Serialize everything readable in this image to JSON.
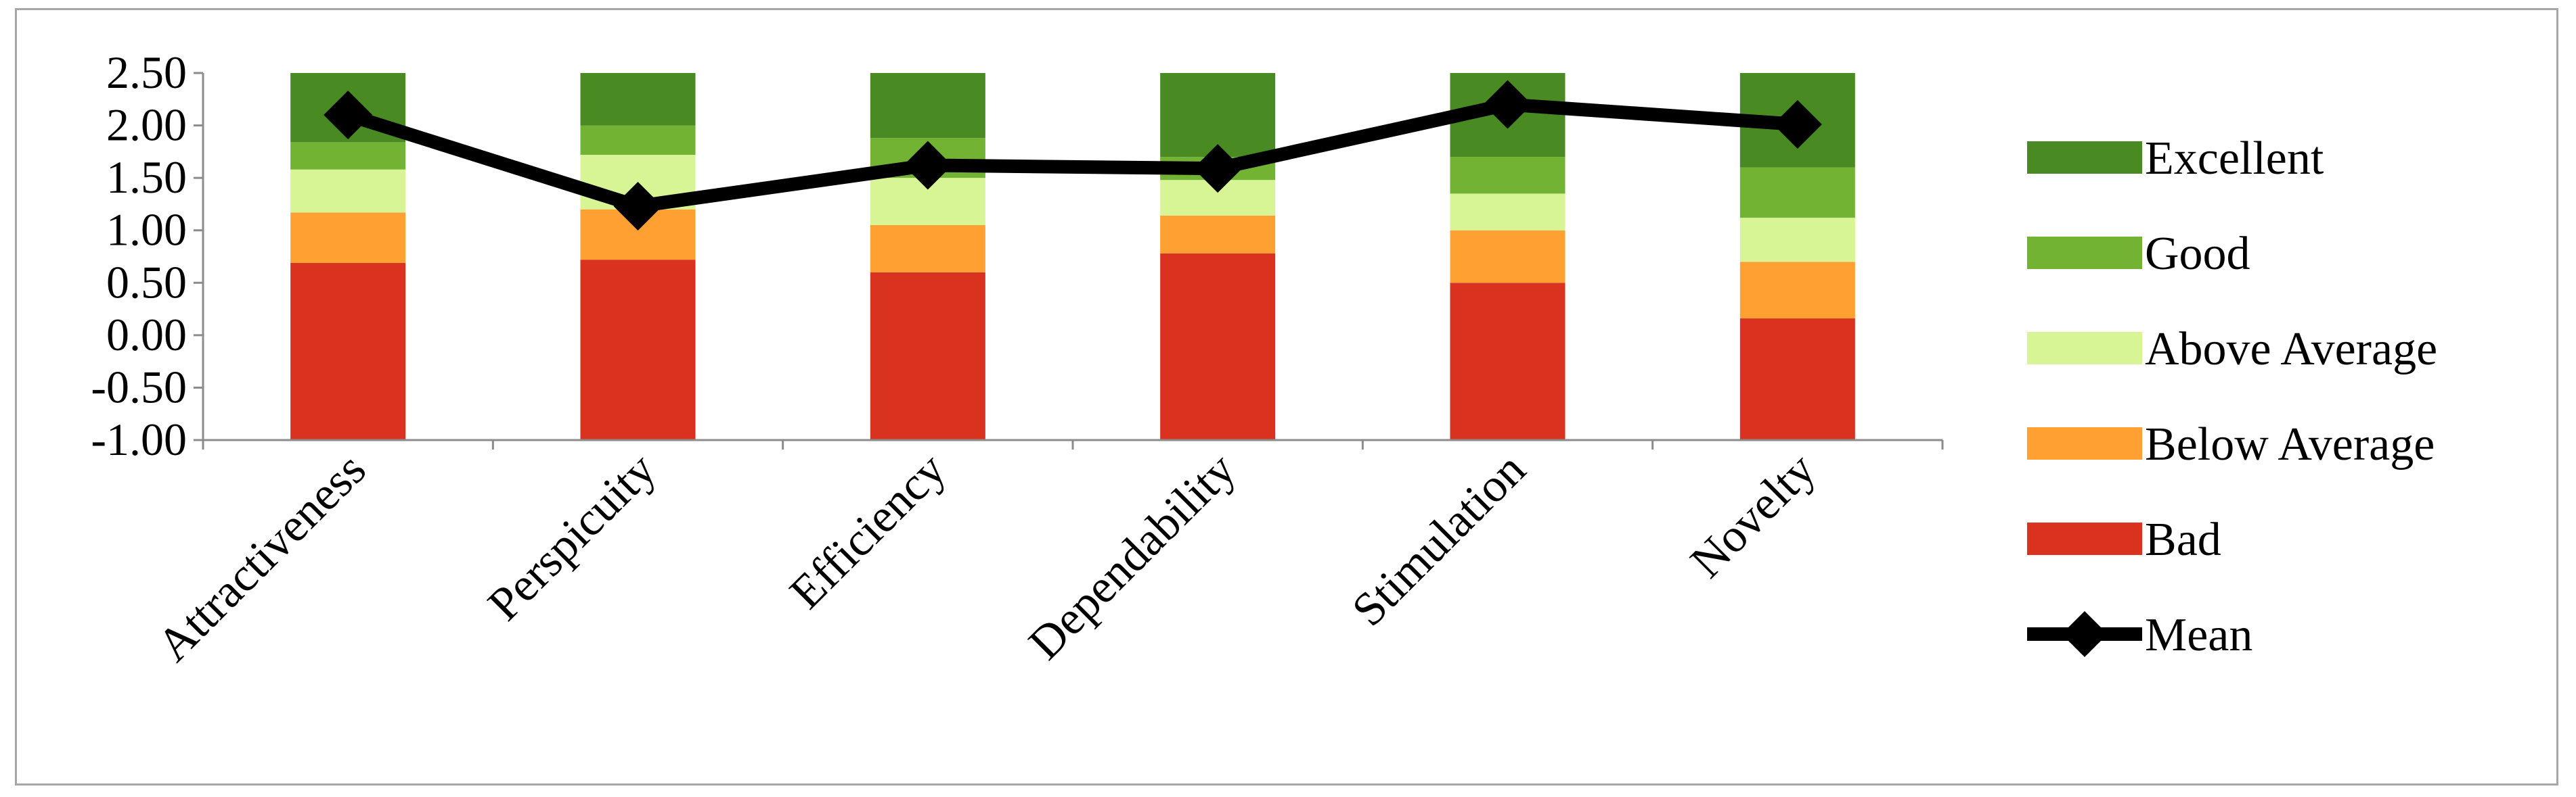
{
  "chart_data": {
    "type": "bar",
    "stacked": true,
    "title": "",
    "xlabel": "",
    "ylabel": "",
    "ylim": [
      -1.0,
      2.5
    ],
    "yticks": [
      "2.50",
      "2.00",
      "1.50",
      "1.00",
      "0.50",
      "0.00",
      "-0.50",
      "-1.00"
    ],
    "ytick_values": [
      2.5,
      2.0,
      1.5,
      1.0,
      0.5,
      0.0,
      -0.5,
      -1.0
    ],
    "categories": [
      "Attractiveness",
      "Perspicuity",
      "Efficiency",
      "Dependability",
      "Stimulation",
      "Novelty"
    ],
    "baseline": -1.0,
    "series": [
      {
        "name": "Bad",
        "color": "#d9321f",
        "upper": [
          0.69,
          0.72,
          0.6,
          0.78,
          0.5,
          0.16
        ]
      },
      {
        "name": "Below Average",
        "color": "#ffa033",
        "upper": [
          1.17,
          1.2,
          1.05,
          1.14,
          1.0,
          0.7
        ]
      },
      {
        "name": "Above Average",
        "color": "#d7f595",
        "upper": [
          1.58,
          1.72,
          1.5,
          1.48,
          1.35,
          1.12
        ]
      },
      {
        "name": "Good",
        "color": "#72b334",
        "upper": [
          1.84,
          2.0,
          1.88,
          1.7,
          1.7,
          1.6
        ]
      },
      {
        "name": "Excellent",
        "color": "#4a8a22",
        "upper": [
          2.5,
          2.5,
          2.5,
          2.5,
          2.5,
          2.5
        ]
      }
    ],
    "mean": {
      "name": "Mean",
      "color": "#000000",
      "values": [
        2.1,
        1.23,
        1.62,
        1.59,
        2.2,
        2.01
      ]
    },
    "legend": {
      "position": "right",
      "items": [
        {
          "name": "Excellent",
          "color": "#4a8a22",
          "kind": "box"
        },
        {
          "name": "Good",
          "color": "#72b334",
          "kind": "box"
        },
        {
          "name": "Above Average",
          "color": "#d7f595",
          "kind": "box"
        },
        {
          "name": "Below Average",
          "color": "#ffa033",
          "kind": "box"
        },
        {
          "name": "Bad",
          "color": "#d9321f",
          "kind": "box"
        },
        {
          "name": "Mean",
          "color": "#000000",
          "kind": "line-marker"
        }
      ]
    },
    "grid": false
  }
}
